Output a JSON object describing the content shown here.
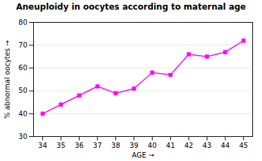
{
  "chart_data": {
    "type": "line",
    "title": "Aneuploidy in oocytes according to maternal age",
    "xlabel": "AGE",
    "ylabel": "% abnormal oocytes",
    "x": [
      34,
      35,
      36,
      37,
      38,
      39,
      40,
      41,
      42,
      43,
      44,
      45
    ],
    "values": [
      40,
      44,
      48,
      52,
      49,
      51,
      58,
      57,
      66,
      65,
      67,
      72
    ],
    "color": "#FF00FF",
    "marker": "square",
    "xlim": [
      33.5,
      45.5
    ],
    "ylim": [
      30,
      80
    ],
    "xticks": [
      34,
      35,
      36,
      37,
      38,
      39,
      40,
      41,
      42,
      43,
      44,
      45
    ],
    "yticks": [
      30,
      40,
      50,
      60,
      70,
      80
    ],
    "grid": "y"
  }
}
